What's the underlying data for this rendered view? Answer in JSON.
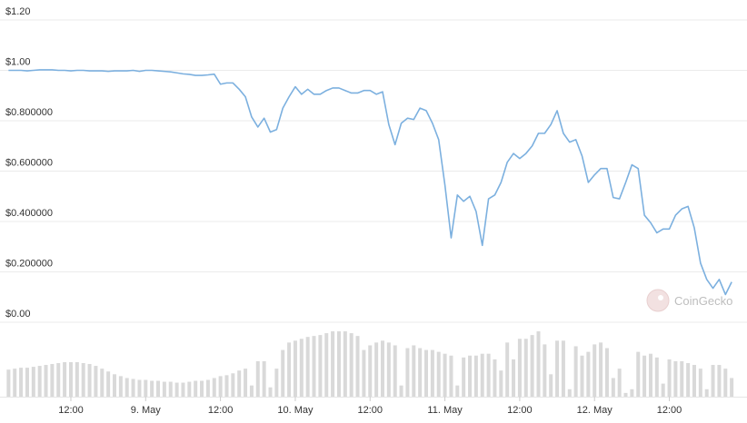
{
  "chart_data": {
    "type": "line",
    "x": [
      2,
      3,
      4,
      5,
      6,
      7,
      8,
      9,
      10,
      11,
      12,
      13,
      14,
      15,
      16,
      17,
      18,
      19,
      20,
      21,
      22,
      23,
      24,
      25,
      26,
      27,
      28,
      29,
      30,
      31,
      32,
      33,
      34,
      35,
      36,
      37,
      38,
      39,
      40,
      41,
      42,
      43,
      44,
      45,
      46,
      47,
      48,
      49,
      50,
      51,
      52,
      53,
      54,
      55,
      56,
      57,
      58,
      59,
      60,
      61,
      62,
      63,
      64,
      65,
      66,
      67,
      68,
      69,
      70,
      71,
      72,
      73,
      74,
      75,
      76,
      77,
      78,
      79,
      80,
      81,
      82,
      83,
      84,
      85,
      86,
      87,
      88,
      89,
      90,
      91,
      92,
      93,
      94,
      95,
      96,
      97,
      98,
      99,
      100,
      101,
      102,
      103,
      104,
      105,
      106,
      107,
      108,
      109,
      110,
      111,
      112,
      113,
      114,
      115,
      116,
      117,
      118
    ],
    "series": [
      {
        "color": "#7cb0df",
        "values": [
          1.0,
          1.0,
          1.0,
          0.998,
          1.0,
          1.002,
          1.002,
          1.002,
          1.0,
          1.0,
          0.998,
          1.0,
          1.0,
          0.998,
          0.998,
          0.998,
          0.996,
          0.998,
          0.998,
          0.998,
          1.0,
          0.996,
          1.0,
          1.0,
          0.998,
          0.996,
          0.994,
          0.99,
          0.986,
          0.984,
          0.98,
          0.98,
          0.982,
          0.985,
          0.945,
          0.95,
          0.95,
          0.925,
          0.895,
          0.815,
          0.775,
          0.81,
          0.755,
          0.765,
          0.85,
          0.895,
          0.935,
          0.905,
          0.925,
          0.905,
          0.905,
          0.92,
          0.93,
          0.93,
          0.92,
          0.91,
          0.91,
          0.92,
          0.92,
          0.905,
          0.915,
          0.785,
          0.705,
          0.79,
          0.81,
          0.805,
          0.85,
          0.84,
          0.79,
          0.725,
          0.545,
          0.335,
          0.505,
          0.48,
          0.5,
          0.44,
          0.305,
          0.49,
          0.505,
          0.555,
          0.635,
          0.67,
          0.65,
          0.67,
          0.7,
          0.75,
          0.75,
          0.785,
          0.84,
          0.75,
          0.715,
          0.725,
          0.66,
          0.555,
          0.585,
          0.61,
          0.61,
          0.495,
          0.49,
          0.555,
          0.625,
          0.61,
          0.425,
          0.395,
          0.355,
          0.37,
          0.37,
          0.425,
          0.45,
          0.46,
          0.375,
          0.235,
          0.17,
          0.135,
          0.17,
          0.11,
          0.16
        ]
      }
    ],
    "volume": {
      "color": "#d9d9d9",
      "values": [
        29,
        30,
        31,
        31,
        32,
        33,
        34,
        35,
        36,
        37,
        37,
        37,
        36,
        35,
        33,
        30,
        27,
        24,
        22,
        20,
        19,
        18,
        18,
        17,
        17,
        16,
        16,
        15,
        15,
        16,
        17,
        17,
        18,
        20,
        22,
        23,
        25,
        28,
        30,
        12,
        38,
        38,
        10,
        30,
        50,
        58,
        60,
        62,
        64,
        65,
        66,
        68,
        70,
        70,
        70,
        68,
        65,
        50,
        55,
        58,
        60,
        58,
        55,
        12,
        52,
        55,
        52,
        50,
        50,
        48,
        46,
        44,
        12,
        42,
        44,
        44,
        46,
        46,
        40,
        28,
        58,
        40,
        62,
        62,
        66,
        70,
        56,
        24,
        60,
        60,
        8,
        54,
        44,
        48,
        56,
        58,
        52,
        20,
        30,
        4,
        8,
        48,
        44,
        46,
        42,
        14,
        40,
        38,
        38,
        36,
        34,
        30,
        8,
        34,
        34,
        30,
        20
      ]
    },
    "xlim": [
      1.8,
      119
    ],
    "xticks": [
      {
        "value": 12,
        "label": "12:00"
      },
      {
        "value": 24,
        "label": "9. May"
      },
      {
        "value": 36,
        "label": "12:00"
      },
      {
        "value": 48,
        "label": "10. May"
      },
      {
        "value": 60,
        "label": "12:00"
      },
      {
        "value": 72,
        "label": "11. May"
      },
      {
        "value": 84,
        "label": "12:00"
      },
      {
        "value": 96,
        "label": "12. May"
      },
      {
        "value": 108,
        "label": "12:00"
      }
    ],
    "ylim": [
      0,
      1.2
    ],
    "yticks": [
      {
        "value": 0,
        "label": "$0.00"
      },
      {
        "value": 0.2,
        "label": "$0.200000"
      },
      {
        "value": 0.4,
        "label": "$0.400000"
      },
      {
        "value": 0.6,
        "label": "$0.600000"
      },
      {
        "value": 0.8,
        "label": "$0.800000"
      },
      {
        "value": 1.0,
        "label": "$1.00"
      },
      {
        "value": 1.2,
        "label": "$1.20"
      }
    ],
    "grid": true,
    "watermark": "CoinGecko"
  }
}
